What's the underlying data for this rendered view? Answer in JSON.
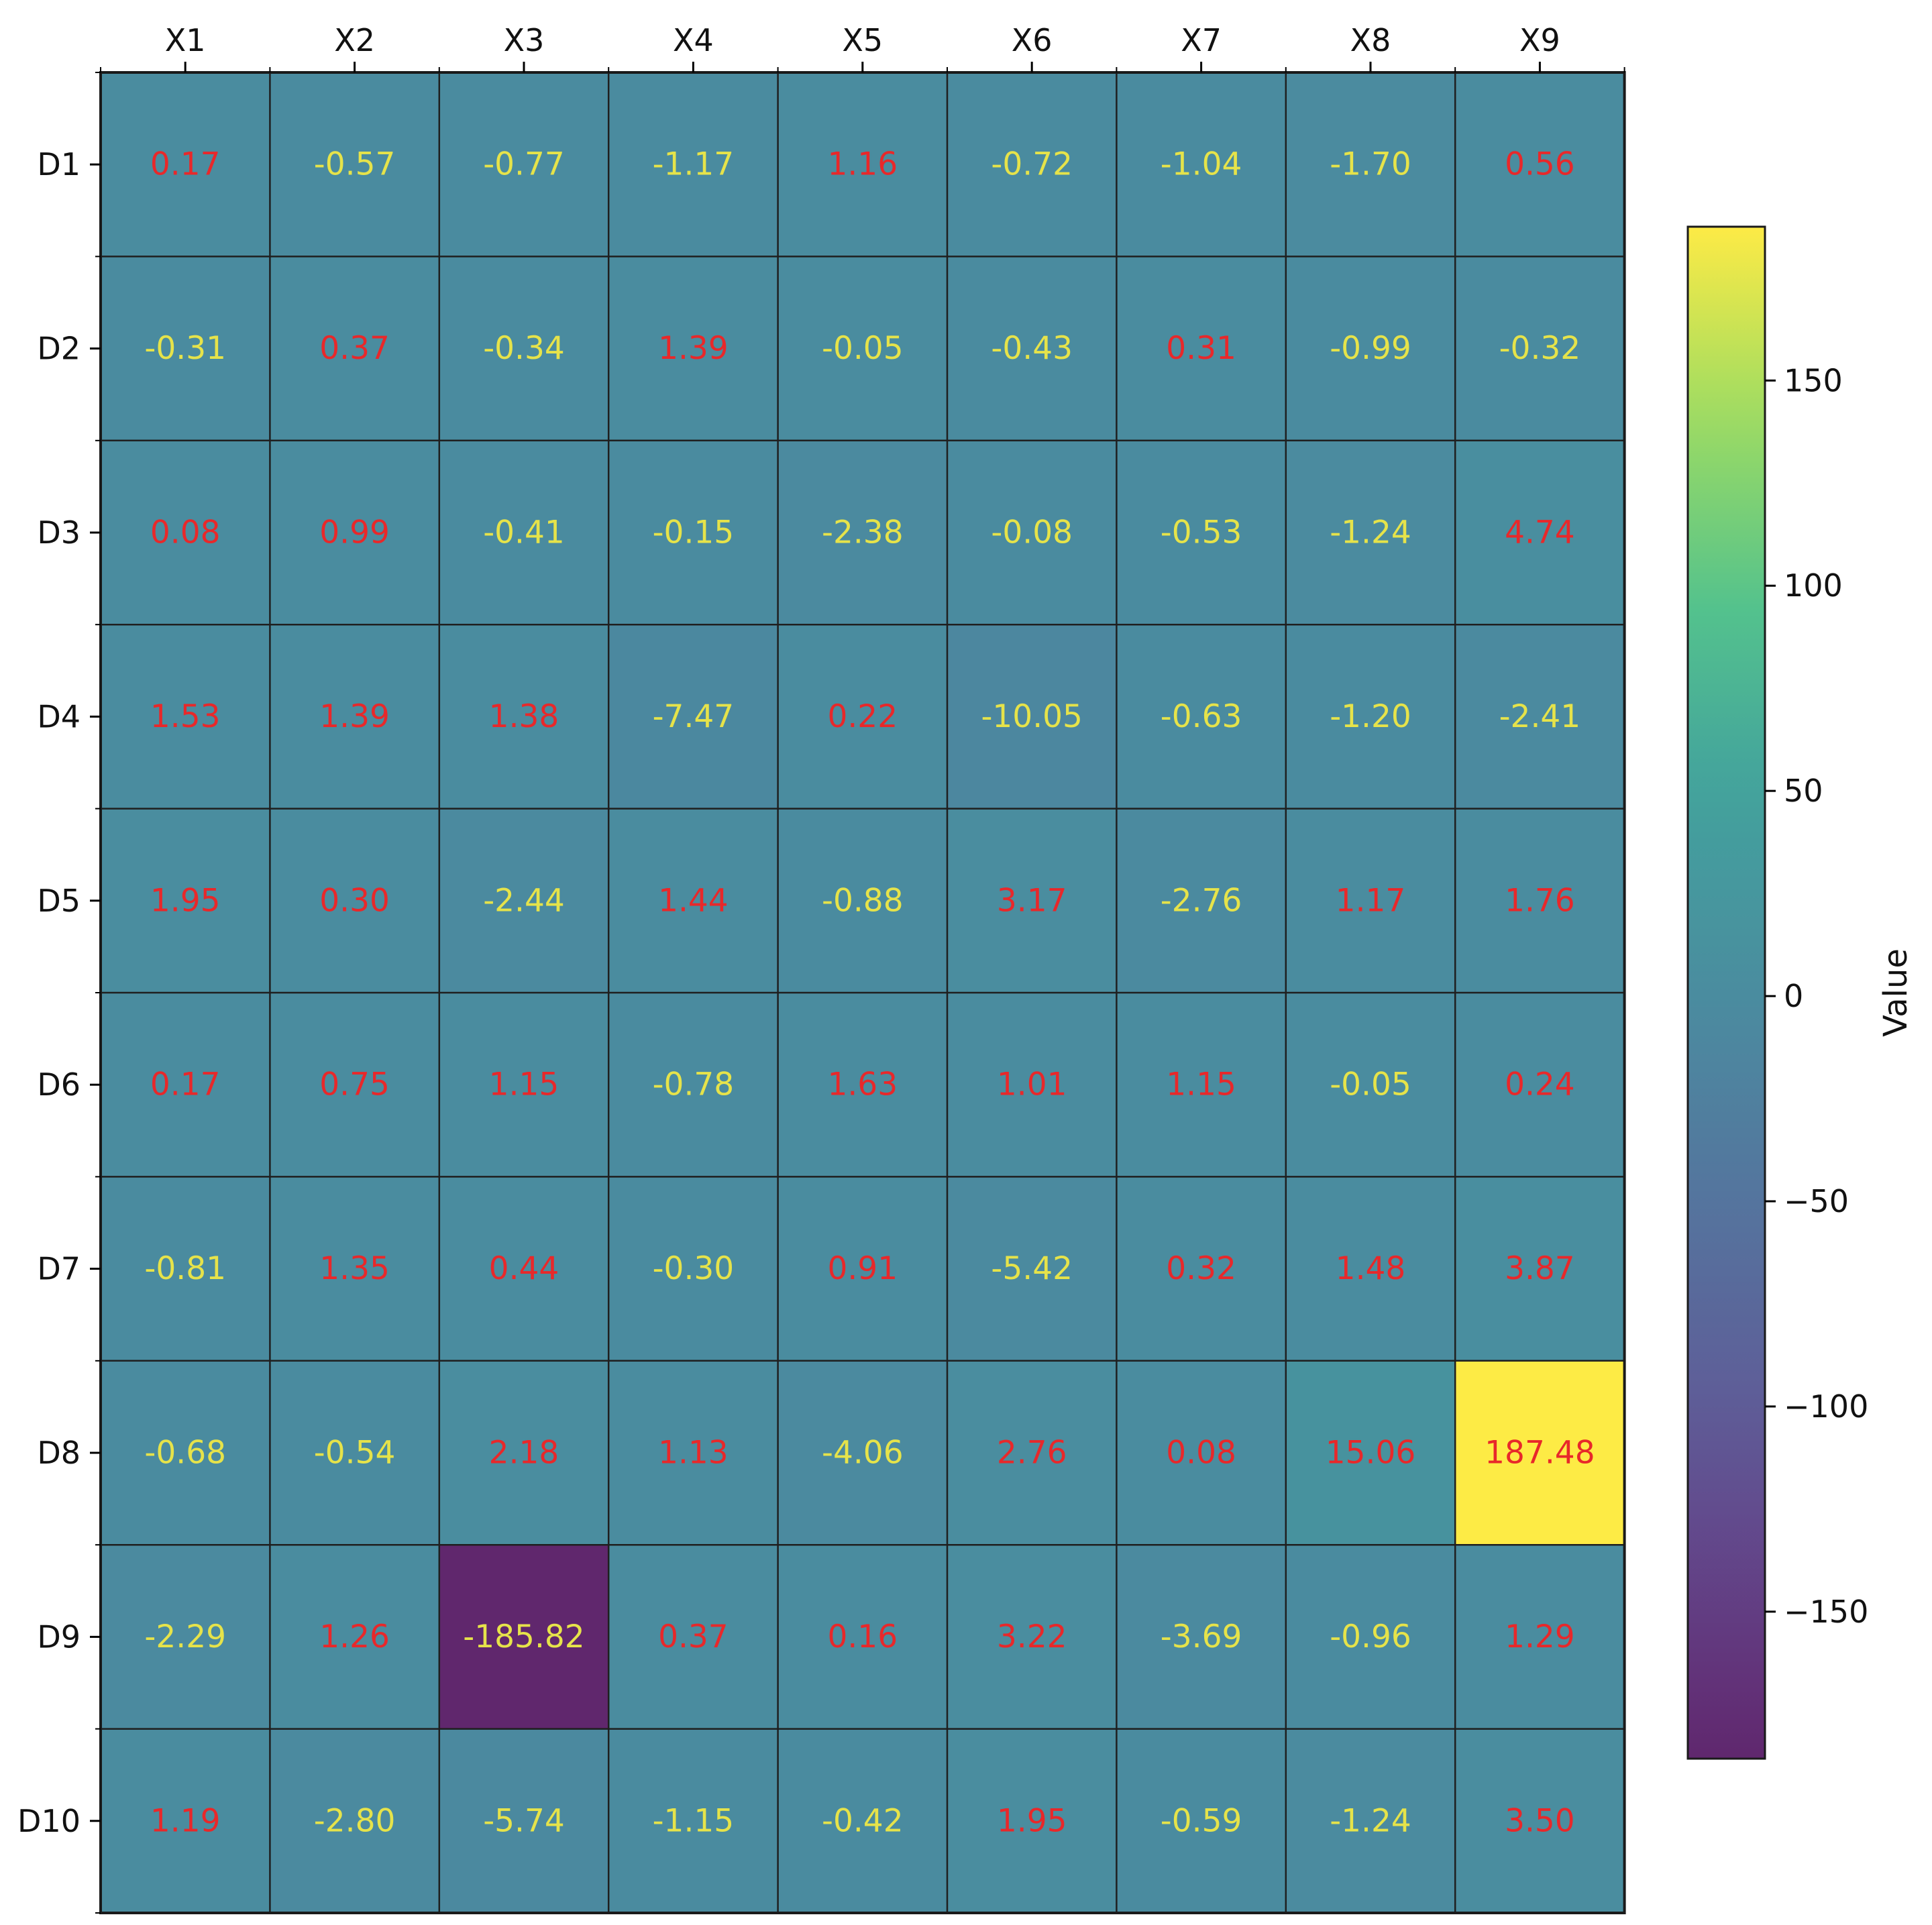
{
  "chart_data": {
    "type": "heatmap",
    "title": "",
    "xlabel": "",
    "ylabel": "",
    "x_categories": [
      "X1",
      "X2",
      "X3",
      "X4",
      "X5",
      "X6",
      "X7",
      "X8",
      "X9"
    ],
    "y_categories": [
      "D1",
      "D2",
      "D3",
      "D4",
      "D5",
      "D6",
      "D7",
      "D8",
      "D9",
      "D10"
    ],
    "values": [
      [
        0.17,
        -0.57,
        -0.77,
        -1.17,
        1.16,
        -0.72,
        -1.04,
        -1.7,
        0.56
      ],
      [
        -0.31,
        0.37,
        -0.34,
        1.39,
        -0.05,
        -0.43,
        0.31,
        -0.99,
        -0.32
      ],
      [
        0.08,
        0.99,
        -0.41,
        -0.15,
        -2.38,
        -0.08,
        -0.53,
        -1.24,
        4.74
      ],
      [
        1.53,
        1.39,
        1.38,
        -7.47,
        0.22,
        -10.05,
        -0.63,
        -1.2,
        -2.41
      ],
      [
        1.95,
        0.3,
        -2.44,
        1.44,
        -0.88,
        3.17,
        -2.76,
        1.17,
        1.76
      ],
      [
        0.17,
        0.75,
        1.15,
        -0.78,
        1.63,
        1.01,
        1.15,
        -0.05,
        0.24
      ],
      [
        -0.81,
        1.35,
        0.44,
        -0.3,
        0.91,
        -5.42,
        0.32,
        1.48,
        3.87
      ],
      [
        -0.68,
        -0.54,
        2.18,
        1.13,
        -4.06,
        2.76,
        0.08,
        15.06,
        187.48
      ],
      [
        -2.29,
        1.26,
        -185.82,
        0.37,
        0.16,
        3.22,
        -3.69,
        -0.96,
        1.29
      ],
      [
        1.19,
        -2.8,
        -5.74,
        -1.15,
        -0.42,
        1.95,
        -0.59,
        -1.24,
        3.5
      ]
    ],
    "value_format": "2 decimals",
    "colormap": "viridis",
    "vmin": -185.82,
    "vmax": 187.48,
    "x_axis_position": "top",
    "colorbar": {
      "label": "Value",
      "ticks": [
        150,
        100,
        50,
        0,
        -50,
        -100,
        -150
      ],
      "tick_labels": [
        "150",
        "100",
        "50",
        "0",
        "−50",
        "−100",
        "−150"
      ],
      "position": "right"
    },
    "annotation_colors": {
      "positive": "#e8282a",
      "negative": "#e6e34a"
    },
    "grid": true
  }
}
